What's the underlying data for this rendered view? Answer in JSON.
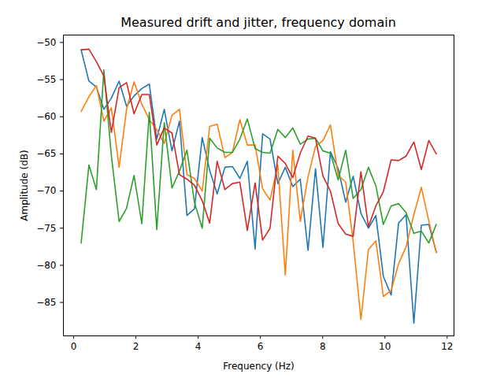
{
  "chart_data": {
    "type": "line",
    "title": "Measured drift and jitter, frequency domain",
    "x_label": "Frequency (Hz)",
    "y_label": "Amplitude (dB)",
    "x": [
      0.24,
      0.49,
      0.73,
      0.97,
      1.21,
      1.46,
      1.7,
      1.94,
      2.19,
      2.43,
      2.67,
      2.91,
      3.16,
      3.4,
      3.64,
      3.88,
      4.13,
      4.37,
      4.61,
      4.86,
      5.1,
      5.34,
      5.58,
      5.83,
      6.07,
      6.31,
      6.56,
      6.8,
      7.04,
      7.28,
      7.53,
      7.77,
      8.01,
      8.25,
      8.5,
      8.74,
      8.98,
      9.23,
      9.47,
      9.71,
      9.95,
      10.2,
      10.44,
      10.68,
      10.93,
      11.17,
      11.41,
      11.65
    ],
    "series": [
      {
        "color": "#1f77b4",
        "values": [
          -51.0,
          -55.2,
          -56.0,
          -59.0,
          -57.5,
          -55.2,
          -58.6,
          -57.2,
          -56.2,
          -55.6,
          -63.0,
          -59.0,
          -64.6,
          -60.6,
          -73.3,
          -72.4,
          -62.8,
          -67.2,
          -70.4,
          -66.8,
          -66.7,
          -68.3,
          -66.0,
          -77.8,
          -62.3,
          -63.0,
          -69.0,
          -66.8,
          -69.4,
          -68.4,
          -78.0,
          -67.0,
          -77.6,
          -64.7,
          -67.0,
          -71.5,
          -68.0,
          -73.0,
          -75.0,
          -73.3,
          -81.5,
          -84.0,
          -74.3,
          -73.2,
          -87.8,
          -74.6,
          -74.5,
          -78.2
        ]
      },
      {
        "color": "#ff7f0e",
        "values": [
          -59.3,
          -57.3,
          -55.8,
          -60.6,
          -58.8,
          -66.8,
          -59.0,
          -55.3,
          -58.3,
          -60.4,
          -61.7,
          -63.6,
          -59.8,
          -59.0,
          -67.8,
          -68.3,
          -70.0,
          -61.3,
          -61.0,
          -65.5,
          -64.8,
          -60.4,
          -63.8,
          -63.8,
          -69.7,
          -71.2,
          -66.5,
          -81.3,
          -64.5,
          -74.1,
          -68.1,
          -64.0,
          -63.2,
          -61.1,
          -67.9,
          -68.8,
          -76.8,
          -87.3,
          -77.9,
          -76.7,
          -84.2,
          -83.4,
          -79.8,
          -77.5,
          -73.2,
          -69.5,
          -74.0,
          -78.3
        ]
      },
      {
        "color": "#2ca02c",
        "values": [
          -77.0,
          -66.5,
          -69.8,
          -53.7,
          -65.2,
          -74.1,
          -72.3,
          -67.9,
          -74.4,
          -59.4,
          -75.2,
          -60.8,
          -69.6,
          -67.3,
          -64.5,
          -71.5,
          -75.0,
          -62.9,
          -64.2,
          -64.8,
          -64.8,
          -63.0,
          -60.3,
          -64.3,
          -64.8,
          -64.9,
          -61.7,
          -62.8,
          -61.5,
          -63.7,
          -63.0,
          -62.9,
          -64.6,
          -64.9,
          -68.5,
          -64.5,
          -71.0,
          -69.8,
          -66.8,
          -69.3,
          -74.5,
          -72.0,
          -71.7,
          -72.9,
          -75.7,
          -75.4,
          -77.0,
          -74.5
        ]
      },
      {
        "color": "#d62728",
        "values": [
          -51.0,
          -50.9,
          -52.6,
          -54.5,
          -62.1,
          -56.1,
          -55.4,
          -59.6,
          -57.0,
          -57.0,
          -63.8,
          -61.5,
          -62.2,
          -67.8,
          -68.4,
          -69.2,
          -71.3,
          -74.3,
          -66.0,
          -69.8,
          -69.0,
          -68.8,
          -75.3,
          -68.9,
          -76.6,
          -75.0,
          -65.3,
          -66.3,
          -68.2,
          -64.9,
          -62.6,
          -62.9,
          -68.0,
          -70.0,
          -74.4,
          -75.8,
          -76.1,
          -67.4,
          -74.8,
          -72.0,
          -70.1,
          -65.8,
          -65.9,
          -65.3,
          -63.4,
          -67.1,
          -63.2,
          -65.0
        ]
      }
    ],
    "xlim": [
      -0.33,
      12.22
    ],
    "ylim": [
      -89.5,
      -49.0
    ],
    "xticks": [
      0,
      2,
      4,
      6,
      8,
      10,
      12
    ],
    "yticks": [
      -85,
      -80,
      -75,
      -70,
      -65,
      -60,
      -55,
      -50
    ],
    "grid": false
  }
}
